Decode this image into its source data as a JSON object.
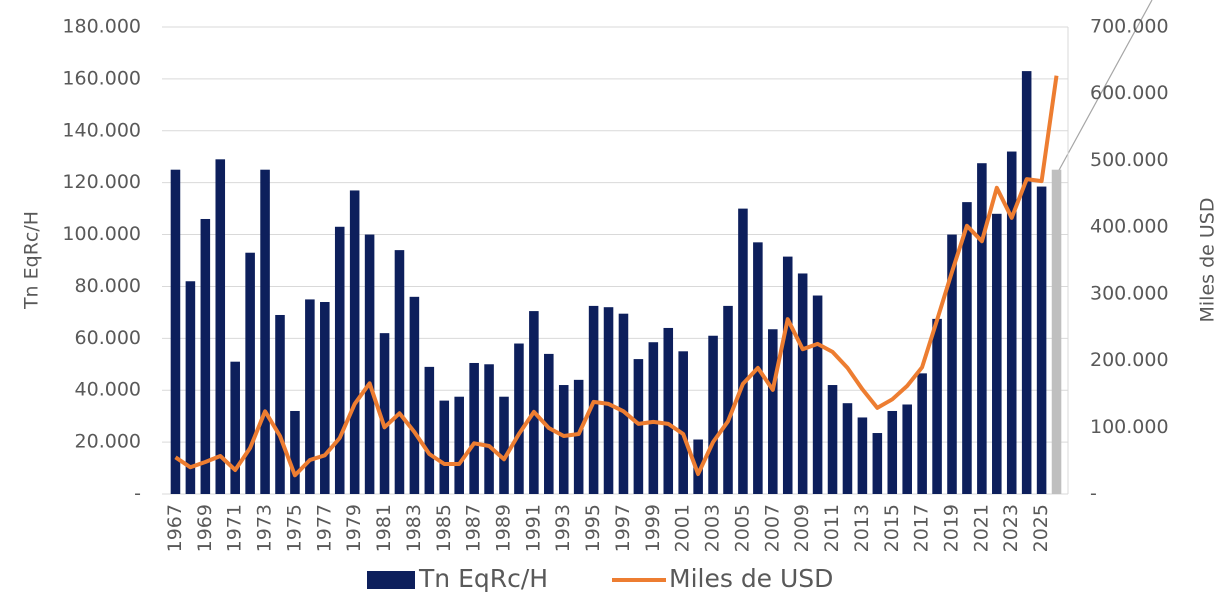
{
  "chart_data": {
    "type": "bar-line",
    "categories": [
      "1967",
      null,
      "1969",
      null,
      "1971",
      null,
      "1973",
      null,
      "1975",
      null,
      "1977",
      null,
      "1979",
      null,
      "1981",
      null,
      "1983",
      null,
      "1985",
      null,
      "1987",
      null,
      "1989",
      null,
      "1991",
      null,
      "1993",
      null,
      "1995",
      null,
      "1997",
      null,
      "1999",
      null,
      "2001",
      null,
      "2003",
      null,
      "2005",
      null,
      "2007",
      null,
      "2009",
      null,
      "2011",
      null,
      "2013",
      null,
      "2015",
      null,
      "2017",
      null,
      "2019",
      null,
      "2021",
      null,
      "2023",
      null,
      "2025",
      null
    ],
    "ylabel": "Tn EqRc/H",
    "y2label": "Miles de USD",
    "ylim": [
      0,
      180000
    ],
    "yticks": [
      {
        "value": 0,
        "label": "-"
      },
      {
        "value": 20000,
        "label": "20.000"
      },
      {
        "value": 40000,
        "label": "40.000"
      },
      {
        "value": 60000,
        "label": "60.000"
      },
      {
        "value": 80000,
        "label": "80.000"
      },
      {
        "value": 100000,
        "label": "100.000"
      },
      {
        "value": 120000,
        "label": "120.000"
      },
      {
        "value": 140000,
        "label": "140.000"
      },
      {
        "value": 160000,
        "label": "160.000"
      },
      {
        "value": 180000,
        "label": "180.000"
      }
    ],
    "y2lim": [
      0,
      700000
    ],
    "y2ticks": [
      {
        "value": 0,
        "label": "-"
      },
      {
        "value": 100000,
        "label": "100.000"
      },
      {
        "value": 200000,
        "label": "200.000"
      },
      {
        "value": 300000,
        "label": "300.000"
      },
      {
        "value": 400000,
        "label": "400.000"
      },
      {
        "value": 500000,
        "label": "500.000"
      },
      {
        "value": 600000,
        "label": "600.000"
      },
      {
        "value": 700000,
        "label": "700.000"
      }
    ],
    "grid": true,
    "legend": "bottom",
    "series": [
      {
        "name": "Tn EqRc/H",
        "type": "bar",
        "color": "#0d1f5c",
        "colors": [
          "#0d1f5c",
          "#0d1f5c",
          "#0d1f5c",
          "#0d1f5c",
          "#0d1f5c",
          "#0d1f5c",
          "#0d1f5c",
          "#0d1f5c",
          "#0d1f5c",
          "#0d1f5c",
          "#0d1f5c",
          "#0d1f5c",
          "#0d1f5c",
          "#0d1f5c",
          "#0d1f5c",
          "#0d1f5c",
          "#0d1f5c",
          "#0d1f5c",
          "#0d1f5c",
          "#0d1f5c",
          "#0d1f5c",
          "#0d1f5c",
          "#0d1f5c",
          "#0d1f5c",
          "#0d1f5c",
          "#0d1f5c",
          "#0d1f5c",
          "#0d1f5c",
          "#0d1f5c",
          "#0d1f5c",
          "#0d1f5c",
          "#0d1f5c",
          "#0d1f5c",
          "#0d1f5c",
          "#0d1f5c",
          "#0d1f5c",
          "#0d1f5c",
          "#0d1f5c",
          "#0d1f5c",
          "#0d1f5c",
          "#0d1f5c",
          "#0d1f5c",
          "#0d1f5c",
          "#0d1f5c",
          "#0d1f5c",
          "#0d1f5c",
          "#0d1f5c",
          "#0d1f5c",
          "#0d1f5c",
          "#0d1f5c",
          "#0d1f5c",
          "#0d1f5c",
          "#0d1f5c",
          "#0d1f5c",
          "#0d1f5c",
          "#0d1f5c",
          "#0d1f5c",
          "#0d1f5c",
          "#0d1f5c",
          "#bfbfbf"
        ],
        "values": [
          125000,
          82000,
          106000,
          129000,
          51000,
          93000,
          125000,
          69000,
          32000,
          75000,
          74000,
          103000,
          117000,
          100000,
          62000,
          94000,
          76000,
          49000,
          36000,
          37500,
          50500,
          50000,
          37500,
          58000,
          70500,
          54000,
          42000,
          44000,
          72500,
          72000,
          69500,
          52000,
          58500,
          64000,
          55000,
          21000,
          61000,
          72500,
          110000,
          97000,
          63500,
          91500,
          85000,
          76500,
          42000,
          35000,
          29500,
          23500,
          32000,
          34500,
          46500,
          67500,
          100000,
          112500,
          127500,
          108000,
          132000,
          163000,
          118500,
          125000
        ]
      },
      {
        "name": "Miles de USD",
        "type": "line",
        "axis": "y2",
        "color": "#ed7d31",
        "values": [
          55000,
          40000,
          48000,
          57000,
          36000,
          69000,
          124000,
          87000,
          28000,
          51000,
          58000,
          84000,
          135000,
          166000,
          100000,
          121000,
          93000,
          60000,
          45000,
          45000,
          76000,
          72000,
          52000,
          90000,
          123000,
          99000,
          87000,
          90000,
          138000,
          135000,
          124000,
          105000,
          108000,
          105000,
          90000,
          30000,
          78000,
          109000,
          165000,
          189000,
          156000,
          262000,
          217000,
          225000,
          213000,
          189000,
          157000,
          129000,
          142000,
          162000,
          190000,
          261000,
          333000,
          402000,
          379000,
          459000,
          414000,
          472000,
          469000,
          627000
        ]
      }
    ]
  }
}
